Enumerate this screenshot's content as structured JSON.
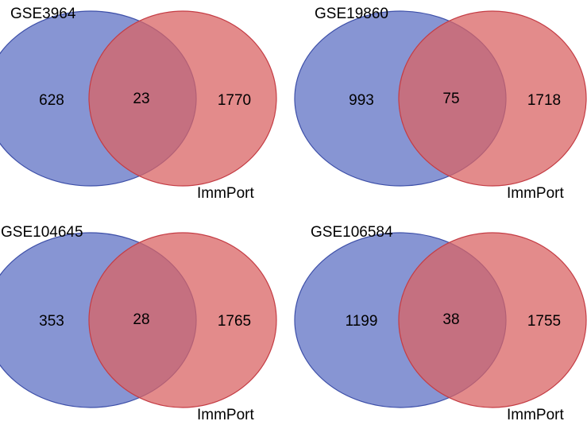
{
  "colors": {
    "left_fill": "#5f72c4",
    "left_stroke": "#3d4fa8",
    "right_fill": "#d96464",
    "right_stroke": "#c43c44",
    "background": "#ffffff"
  },
  "diagrams": [
    {
      "left_label": "GSE3964",
      "right_label": "ImmPort",
      "left_only": "628",
      "overlap": "23",
      "right_only": "1770"
    },
    {
      "left_label": "GSE19860",
      "right_label": "ImmPort",
      "left_only": "993",
      "overlap": "75",
      "right_only": "1718"
    },
    {
      "left_label": "GSE104645",
      "right_label": "ImmPort",
      "left_only": "353",
      "overlap": "28",
      "right_only": "1765"
    },
    {
      "left_label": "GSE106584",
      "right_label": "ImmPort",
      "left_only": "1199",
      "overlap": "38",
      "right_only": "1755"
    }
  ]
}
